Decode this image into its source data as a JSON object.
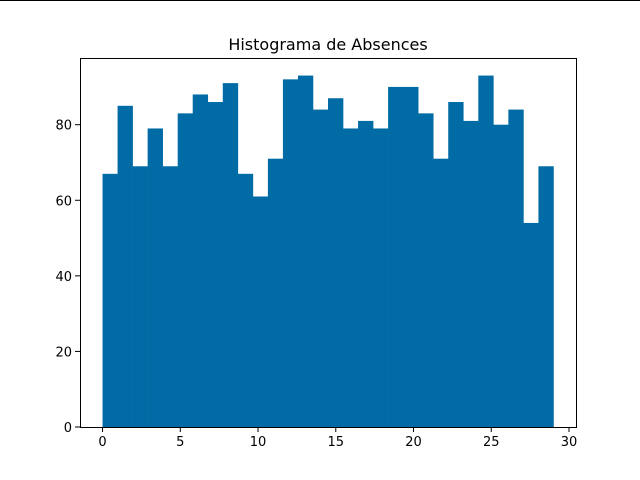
{
  "chart_data": {
    "type": "bar",
    "title": "Histograma de Absences",
    "xlabel": "",
    "ylabel": "",
    "xlim": [
      -1.45,
      30.45
    ],
    "ylim": [
      0,
      97.65
    ],
    "bar_color": "#006BA4",
    "grid": false,
    "bins": {
      "start": 0,
      "end": 29,
      "count": 30
    },
    "values": [
      67,
      85,
      69,
      79,
      69,
      83,
      88,
      86,
      91,
      67,
      61,
      71,
      92,
      93,
      84,
      87,
      79,
      81,
      79,
      90,
      90,
      83,
      71,
      86,
      81,
      93,
      80,
      84,
      54,
      69
    ],
    "x_ticks": [
      0,
      5,
      10,
      15,
      20,
      25,
      30
    ],
    "y_ticks": [
      0,
      20,
      40,
      60,
      80
    ]
  }
}
